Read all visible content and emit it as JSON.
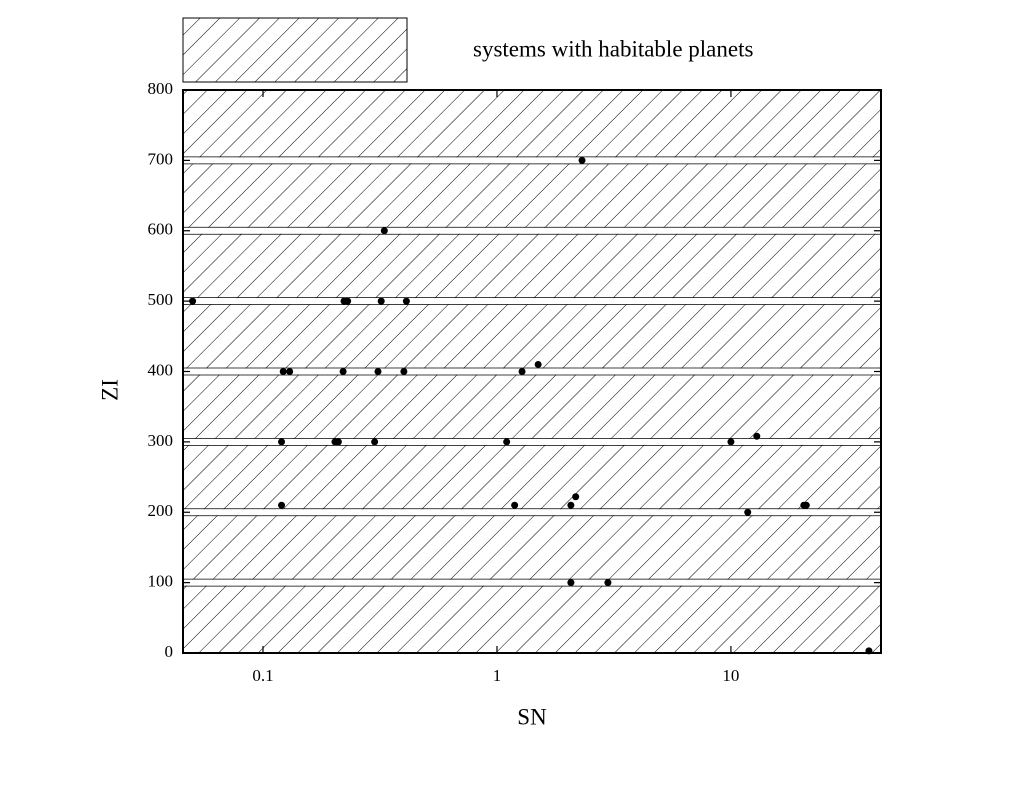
{
  "chart_data": {
    "type": "scatter",
    "xlabel": "SN",
    "ylabel": "ZI",
    "xscale": "log",
    "xlim": [
      0.0455,
      43.8
    ],
    "ylim": [
      0,
      800
    ],
    "xticks": [
      0.1,
      1,
      10
    ],
    "yticks": [
      0,
      100,
      200,
      300,
      400,
      500,
      600,
      700,
      800
    ],
    "grid": true,
    "area": {
      "name": "systems with habitable planets",
      "pattern": "hatch",
      "color": "#000000"
    },
    "series": [
      {
        "color": "#000000",
        "x": [
          0.05,
          0.122,
          0.13,
          0.12,
          0.12,
          0.203,
          0.21,
          0.222,
          0.23,
          0.22,
          0.3,
          0.31,
          0.32,
          0.33,
          0.4,
          0.41,
          1.1,
          1.19,
          1.28,
          1.5,
          2.07,
          2.07,
          2.17,
          2.31,
          2.98,
          10,
          11.8,
          12.9,
          20.5,
          21,
          38.9
        ],
        "values": [
          500,
          400,
          400,
          300,
          210,
          300,
          300,
          500,
          500,
          400,
          300,
          400,
          500,
          600,
          400,
          500,
          300,
          210,
          400,
          410,
          210,
          100,
          222,
          700,
          100,
          300,
          200,
          308,
          210,
          210,
          3
        ]
      }
    ]
  }
}
